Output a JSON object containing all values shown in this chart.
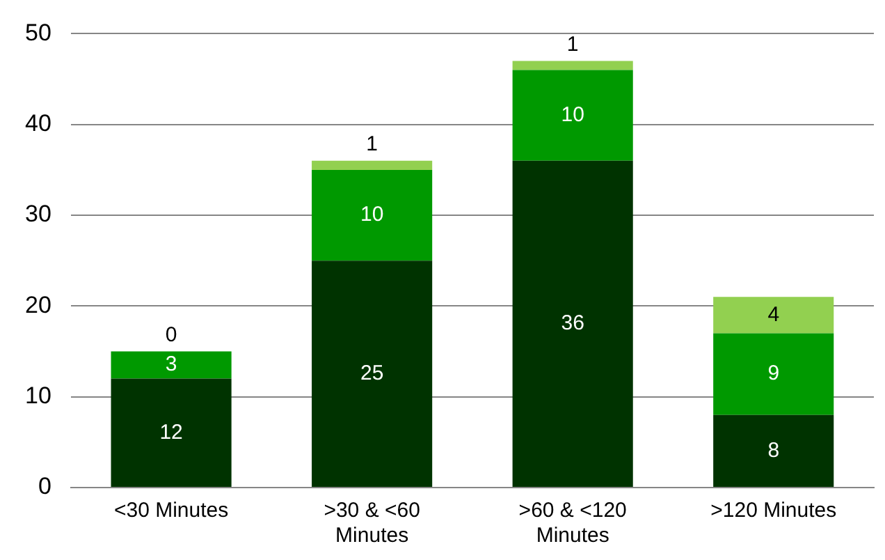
{
  "chart_data": {
    "type": "bar",
    "stacked": true,
    "categories": [
      "<30 Minutes",
      ">30 & <60 Minutes",
      ">60 & <120 Minutes",
      ">120 Minutes"
    ],
    "series": [
      {
        "color": "#003300",
        "values": [
          12,
          25,
          36,
          8
        ]
      },
      {
        "color": "#009900",
        "values": [
          3,
          10,
          10,
          9
        ]
      },
      {
        "color": "#92d050",
        "values": [
          0,
          1,
          1,
          4
        ]
      }
    ],
    "ylim": [
      0,
      50
    ],
    "yticks": [
      0,
      10,
      20,
      30,
      40,
      50
    ],
    "grid": "y",
    "data_labels": true,
    "legend": false
  }
}
